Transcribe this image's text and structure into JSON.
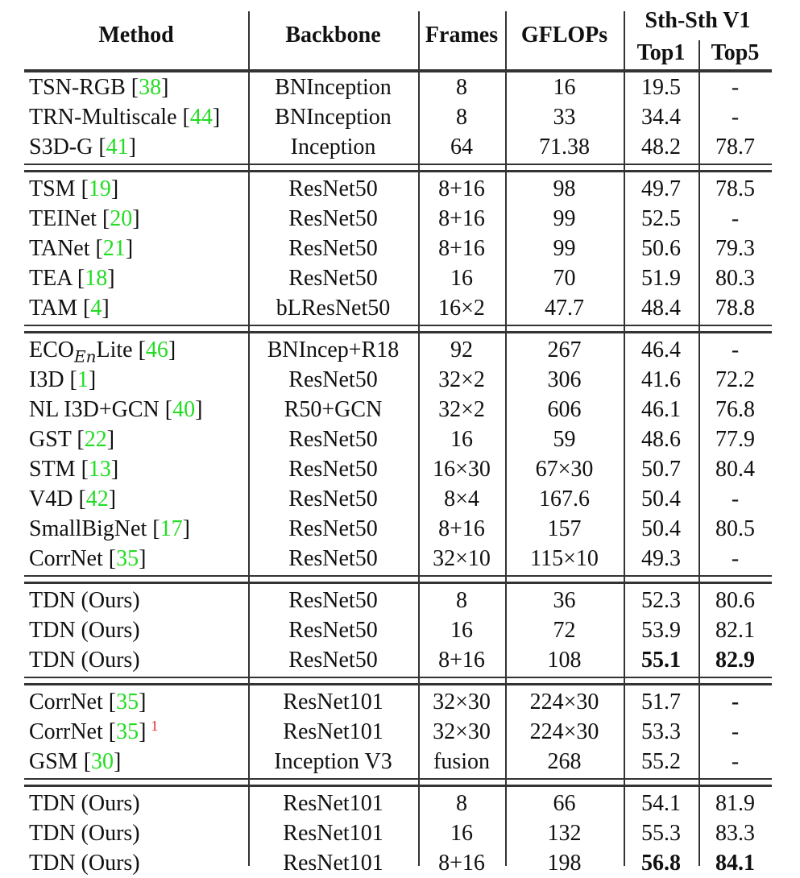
{
  "header": {
    "method": "Method",
    "backbone": "Backbone",
    "frames": "Frames",
    "gflops": "GFLOPs",
    "dataset": "Sth-Sth V1",
    "top1": "Top1",
    "top5": "Top5"
  },
  "groups": [
    {
      "rows": [
        {
          "method": "TSN-RGB",
          "cite": "38",
          "sup": "",
          "backbone": "BNInception",
          "frames": "8",
          "gflops": "16",
          "top1": "19.5",
          "top5": "-",
          "bold1": false,
          "bold5": false
        },
        {
          "method": "TRN-Multiscale",
          "cite": "44",
          "sup": "",
          "backbone": "BNInception",
          "frames": "8",
          "gflops": "33",
          "top1": "34.4",
          "top5": "-",
          "bold1": false,
          "bold5": false
        },
        {
          "method": "S3D-G",
          "cite": "41",
          "sup": "",
          "backbone": "Inception",
          "frames": "64",
          "gflops": "71.38",
          "top1": "48.2",
          "top5": "78.7",
          "bold1": false,
          "bold5": false
        }
      ]
    },
    {
      "rows": [
        {
          "method": "TSM",
          "cite": "19",
          "sup": "",
          "backbone": "ResNet50",
          "frames": "8+16",
          "gflops": "98",
          "top1": "49.7",
          "top5": "78.5",
          "bold1": false,
          "bold5": false
        },
        {
          "method": "TEINet",
          "cite": "20",
          "sup": "",
          "backbone": "ResNet50",
          "frames": "8+16",
          "gflops": "99",
          "top1": "52.5",
          "top5": "-",
          "bold1": false,
          "bold5": false
        },
        {
          "method": "TANet",
          "cite": "21",
          "sup": "",
          "backbone": "ResNet50",
          "frames": "8+16",
          "gflops": "99",
          "top1": "50.6",
          "top5": "79.3",
          "bold1": false,
          "bold5": false
        },
        {
          "method": "TEA",
          "cite": "18",
          "sup": "",
          "backbone": "ResNet50",
          "frames": "16",
          "gflops": "70",
          "top1": "51.9",
          "top5": "80.3",
          "bold1": false,
          "bold5": false
        },
        {
          "method": "TAM",
          "cite": "4",
          "sup": "",
          "backbone": "bLResNet50",
          "frames": "16×2",
          "gflops": "47.7",
          "top1": "48.4",
          "top5": "78.8",
          "bold1": false,
          "bold5": false
        }
      ]
    },
    {
      "rows": [
        {
          "method": "ECO",
          "method_sub": "En",
          "method_suffix": "Lite",
          "cite": "46",
          "sup": "",
          "backbone": "BNIncep+R18",
          "frames": "92",
          "gflops": "267",
          "top1": "46.4",
          "top5": "-",
          "bold1": false,
          "bold5": false
        },
        {
          "method": "I3D",
          "cite": "1",
          "sup": "",
          "backbone": "ResNet50",
          "frames": "32×2",
          "gflops": "306",
          "top1": "41.6",
          "top5": "72.2",
          "bold1": false,
          "bold5": false
        },
        {
          "method": "NL I3D+GCN",
          "cite": "40",
          "sup": "",
          "backbone": "R50+GCN",
          "frames": "32×2",
          "gflops": "606",
          "top1": "46.1",
          "top5": "76.8",
          "bold1": false,
          "bold5": false
        },
        {
          "method": "GST",
          "cite": "22",
          "sup": "",
          "backbone": "ResNet50",
          "frames": "16",
          "gflops": "59",
          "top1": "48.6",
          "top5": "77.9",
          "bold1": false,
          "bold5": false
        },
        {
          "method": "STM",
          "cite": "13",
          "sup": "",
          "backbone": "ResNet50",
          "frames": "16×30",
          "gflops": "67×30",
          "top1": "50.7",
          "top5": "80.4",
          "bold1": false,
          "bold5": false
        },
        {
          "method": "V4D",
          "cite": "42",
          "sup": "",
          "backbone": "ResNet50",
          "frames": "8×4",
          "gflops": "167.6",
          "top1": "50.4",
          "top5": "-",
          "bold1": false,
          "bold5": false
        },
        {
          "method": "SmallBigNet",
          "cite": "17",
          "sup": "",
          "backbone": "ResNet50",
          "frames": "8+16",
          "gflops": "157",
          "top1": "50.4",
          "top5": "80.5",
          "bold1": false,
          "bold5": false
        },
        {
          "method": "CorrNet",
          "cite": "35",
          "sup": "",
          "backbone": "ResNet50",
          "frames": "32×10",
          "gflops": "115×10",
          "top1": "49.3",
          "top5": "-",
          "bold1": false,
          "bold5": false
        }
      ]
    },
    {
      "rows": [
        {
          "method": "TDN (Ours)",
          "cite": "",
          "sup": "",
          "backbone": "ResNet50",
          "frames": "8",
          "gflops": "36",
          "top1": "52.3",
          "top5": "80.6",
          "bold1": false,
          "bold5": false
        },
        {
          "method": "TDN (Ours)",
          "cite": "",
          "sup": "",
          "backbone": "ResNet50",
          "frames": "16",
          "gflops": "72",
          "top1": "53.9",
          "top5": "82.1",
          "bold1": false,
          "bold5": false
        },
        {
          "method": "TDN (Ours)",
          "cite": "",
          "sup": "",
          "backbone": "ResNet50",
          "frames": "8+16",
          "gflops": "108",
          "top1": "55.1",
          "top5": "82.9",
          "bold1": true,
          "bold5": true
        }
      ]
    },
    {
      "rows": [
        {
          "method": "CorrNet",
          "cite": "35",
          "sup": "",
          "backbone": "ResNet101",
          "frames": "32×30",
          "gflops": "224×30",
          "top1": "51.7",
          "top5": "-",
          "bold1": false,
          "bold5": true
        },
        {
          "method": "CorrNet",
          "cite": "35",
          "sup": "1",
          "backbone": "ResNet101",
          "frames": "32×30",
          "gflops": "224×30",
          "top1": "53.3",
          "top5": "-",
          "bold1": false,
          "bold5": false
        },
        {
          "method": "GSM",
          "cite": "30",
          "sup": "",
          "backbone": "Inception V3",
          "frames": "fusion",
          "gflops": "268",
          "top1": "55.2",
          "top5": "-",
          "bold1": false,
          "bold5": false
        }
      ]
    },
    {
      "rows": [
        {
          "method": "TDN (Ours)",
          "cite": "",
          "sup": "",
          "backbone": "ResNet101",
          "frames": "8",
          "gflops": "66",
          "top1": "54.1",
          "top5": "81.9",
          "bold1": false,
          "bold5": false
        },
        {
          "method": "TDN (Ours)",
          "cite": "",
          "sup": "",
          "backbone": "ResNet101",
          "frames": "16",
          "gflops": "132",
          "top1": "55.3",
          "top5": "83.3",
          "bold1": false,
          "bold5": false
        },
        {
          "method": "TDN (Ours)",
          "cite": "",
          "sup": "",
          "backbone": "ResNet101",
          "frames": "8+16",
          "gflops": "198",
          "top1": "56.8",
          "top5": "84.1",
          "bold1": true,
          "bold5": true
        }
      ]
    }
  ],
  "colors": {
    "citation": "#22dd22",
    "footnote": "#ee2222",
    "rule": "#333333"
  }
}
